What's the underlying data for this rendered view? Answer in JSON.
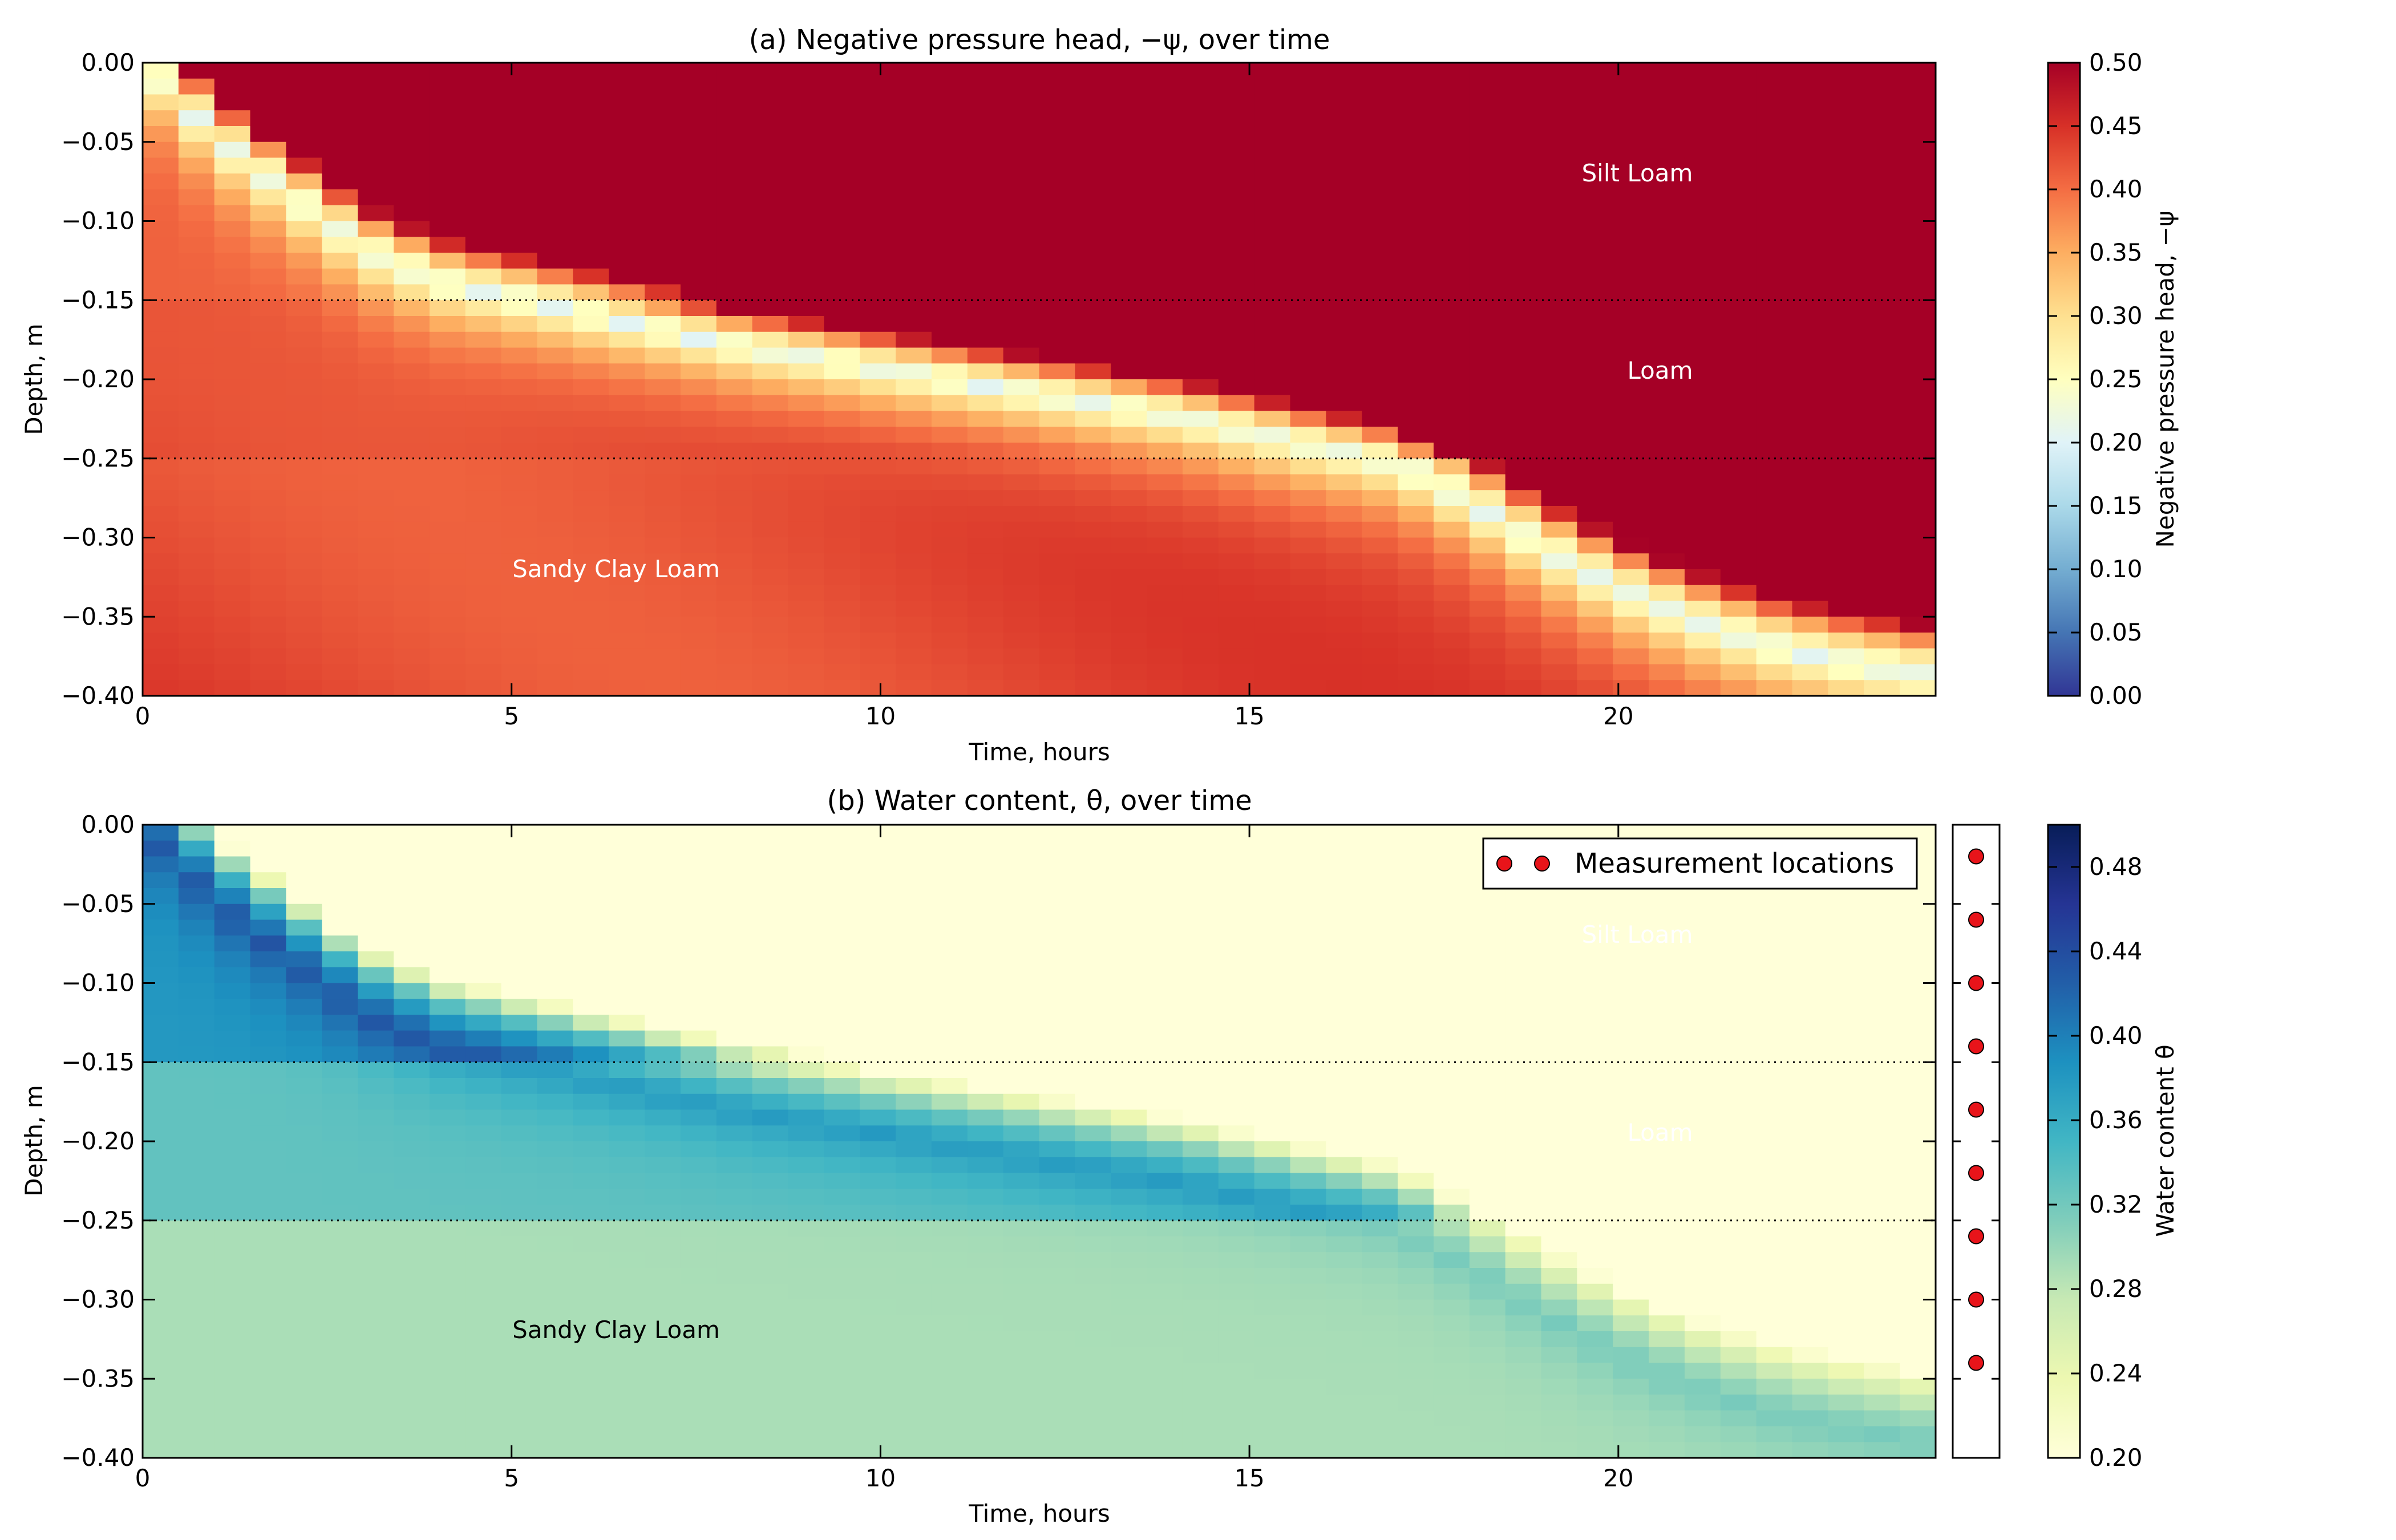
{
  "chart_data": [
    {
      "type": "heatmap",
      "title": "(a) Negative pressure head, −ψ, over time",
      "xlabel": "Time, hours",
      "ylabel": "Depth, m",
      "xlim": [
        0,
        24.3
      ],
      "ylim": [
        -0.4,
        0.0
      ],
      "x_ticks": [
        "0",
        "5",
        "10",
        "15",
        "20"
      ],
      "y_ticks": [
        "0.00",
        "−0.05",
        "−0.10",
        "−0.15",
        "−0.20",
        "−0.25",
        "−0.30",
        "−0.35",
        "−0.40"
      ],
      "layer_boundaries_m": [
        -0.15,
        -0.25
      ],
      "layer_labels": [
        "Silt Loam",
        "Loam",
        "Sandy Clay Loam"
      ],
      "colorbar": {
        "label": "Negative pressure head, −ψ",
        "range": [
          0.0,
          0.5
        ],
        "ticks": [
          "0.00",
          "0.05",
          "0.10",
          "0.15",
          "0.20",
          "0.25",
          "0.30",
          "0.35",
          "0.40",
          "0.45",
          "0.50"
        ],
        "colormap": "RdYlBu_r"
      },
      "wetting_front_depth_m": {
        "time_h": [
          0,
          1,
          2,
          3,
          4,
          5,
          6,
          7,
          8,
          10,
          12,
          14,
          16,
          17,
          18,
          19,
          20,
          21,
          22,
          23,
          24.3
        ],
        "depth": [
          0.0,
          -0.05,
          -0.085,
          -0.12,
          -0.14,
          -0.15,
          -0.16,
          -0.17,
          -0.18,
          -0.195,
          -0.21,
          -0.225,
          -0.245,
          -0.255,
          -0.28,
          -0.31,
          -0.335,
          -0.355,
          -0.37,
          -0.38,
          -0.39
        ]
      }
    },
    {
      "type": "heatmap",
      "title": "(b) Water content, θ, over time",
      "xlabel": "Time, hours",
      "ylabel": "Depth, m",
      "xlim": [
        0,
        24.3
      ],
      "ylim": [
        -0.4,
        0.0
      ],
      "x_ticks": [
        "0",
        "5",
        "10",
        "15",
        "20"
      ],
      "y_ticks": [
        "0.00",
        "−0.05",
        "−0.10",
        "−0.15",
        "−0.20",
        "−0.25",
        "−0.30",
        "−0.35",
        "−0.40"
      ],
      "layer_boundaries_m": [
        -0.15,
        -0.25
      ],
      "layer_labels": [
        "Silt Loam",
        "Loam",
        "Sandy Clay Loam"
      ],
      "legend": {
        "label": "Measurement locations",
        "placement": "top-right"
      },
      "colorbar": {
        "label": "Water content θ",
        "range": [
          0.2,
          0.5
        ],
        "ticks": [
          "0.20",
          "0.24",
          "0.28",
          "0.32",
          "0.36",
          "0.40",
          "0.44",
          "0.48"
        ],
        "colormap": "YlGnBu"
      },
      "measurement_locations_depth_m": [
        -0.02,
        -0.06,
        -0.1,
        -0.14,
        -0.18,
        -0.22,
        -0.26,
        -0.3,
        -0.34
      ],
      "initial_theta": {
        "silt_loam": 0.38,
        "loam": 0.33,
        "sandy_clay_loam": 0.29
      },
      "saturated_theta": {
        "silt_loam": 0.48,
        "loam": 0.42,
        "sandy_clay_loam": 0.34
      }
    }
  ],
  "colors": {
    "marker_fill": "#e8141a",
    "layer_line": "#000000",
    "label_on_dark": "#ffffff",
    "label_on_light": "#000000"
  }
}
